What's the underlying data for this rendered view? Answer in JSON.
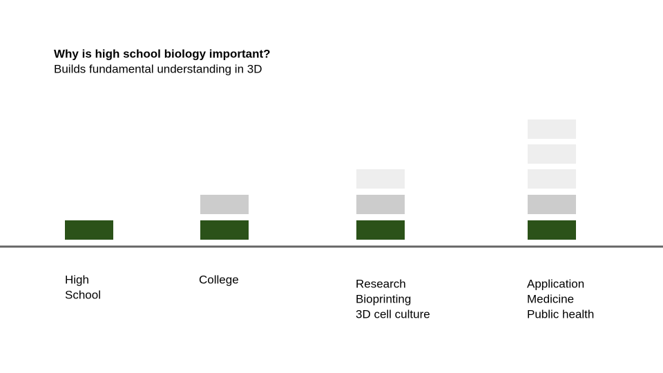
{
  "header": {
    "title": "Why is high school biology important?",
    "subtitle": "Builds fundamental understanding in 3D"
  },
  "stages": [
    {
      "lines": [
        "High",
        "School"
      ]
    },
    {
      "lines": [
        "College"
      ]
    },
    {
      "lines": [
        "Research",
        "Bioprinting",
        "3D cell culture"
      ]
    },
    {
      "lines": [
        "Application",
        "Medicine",
        "Public health"
      ]
    }
  ]
}
